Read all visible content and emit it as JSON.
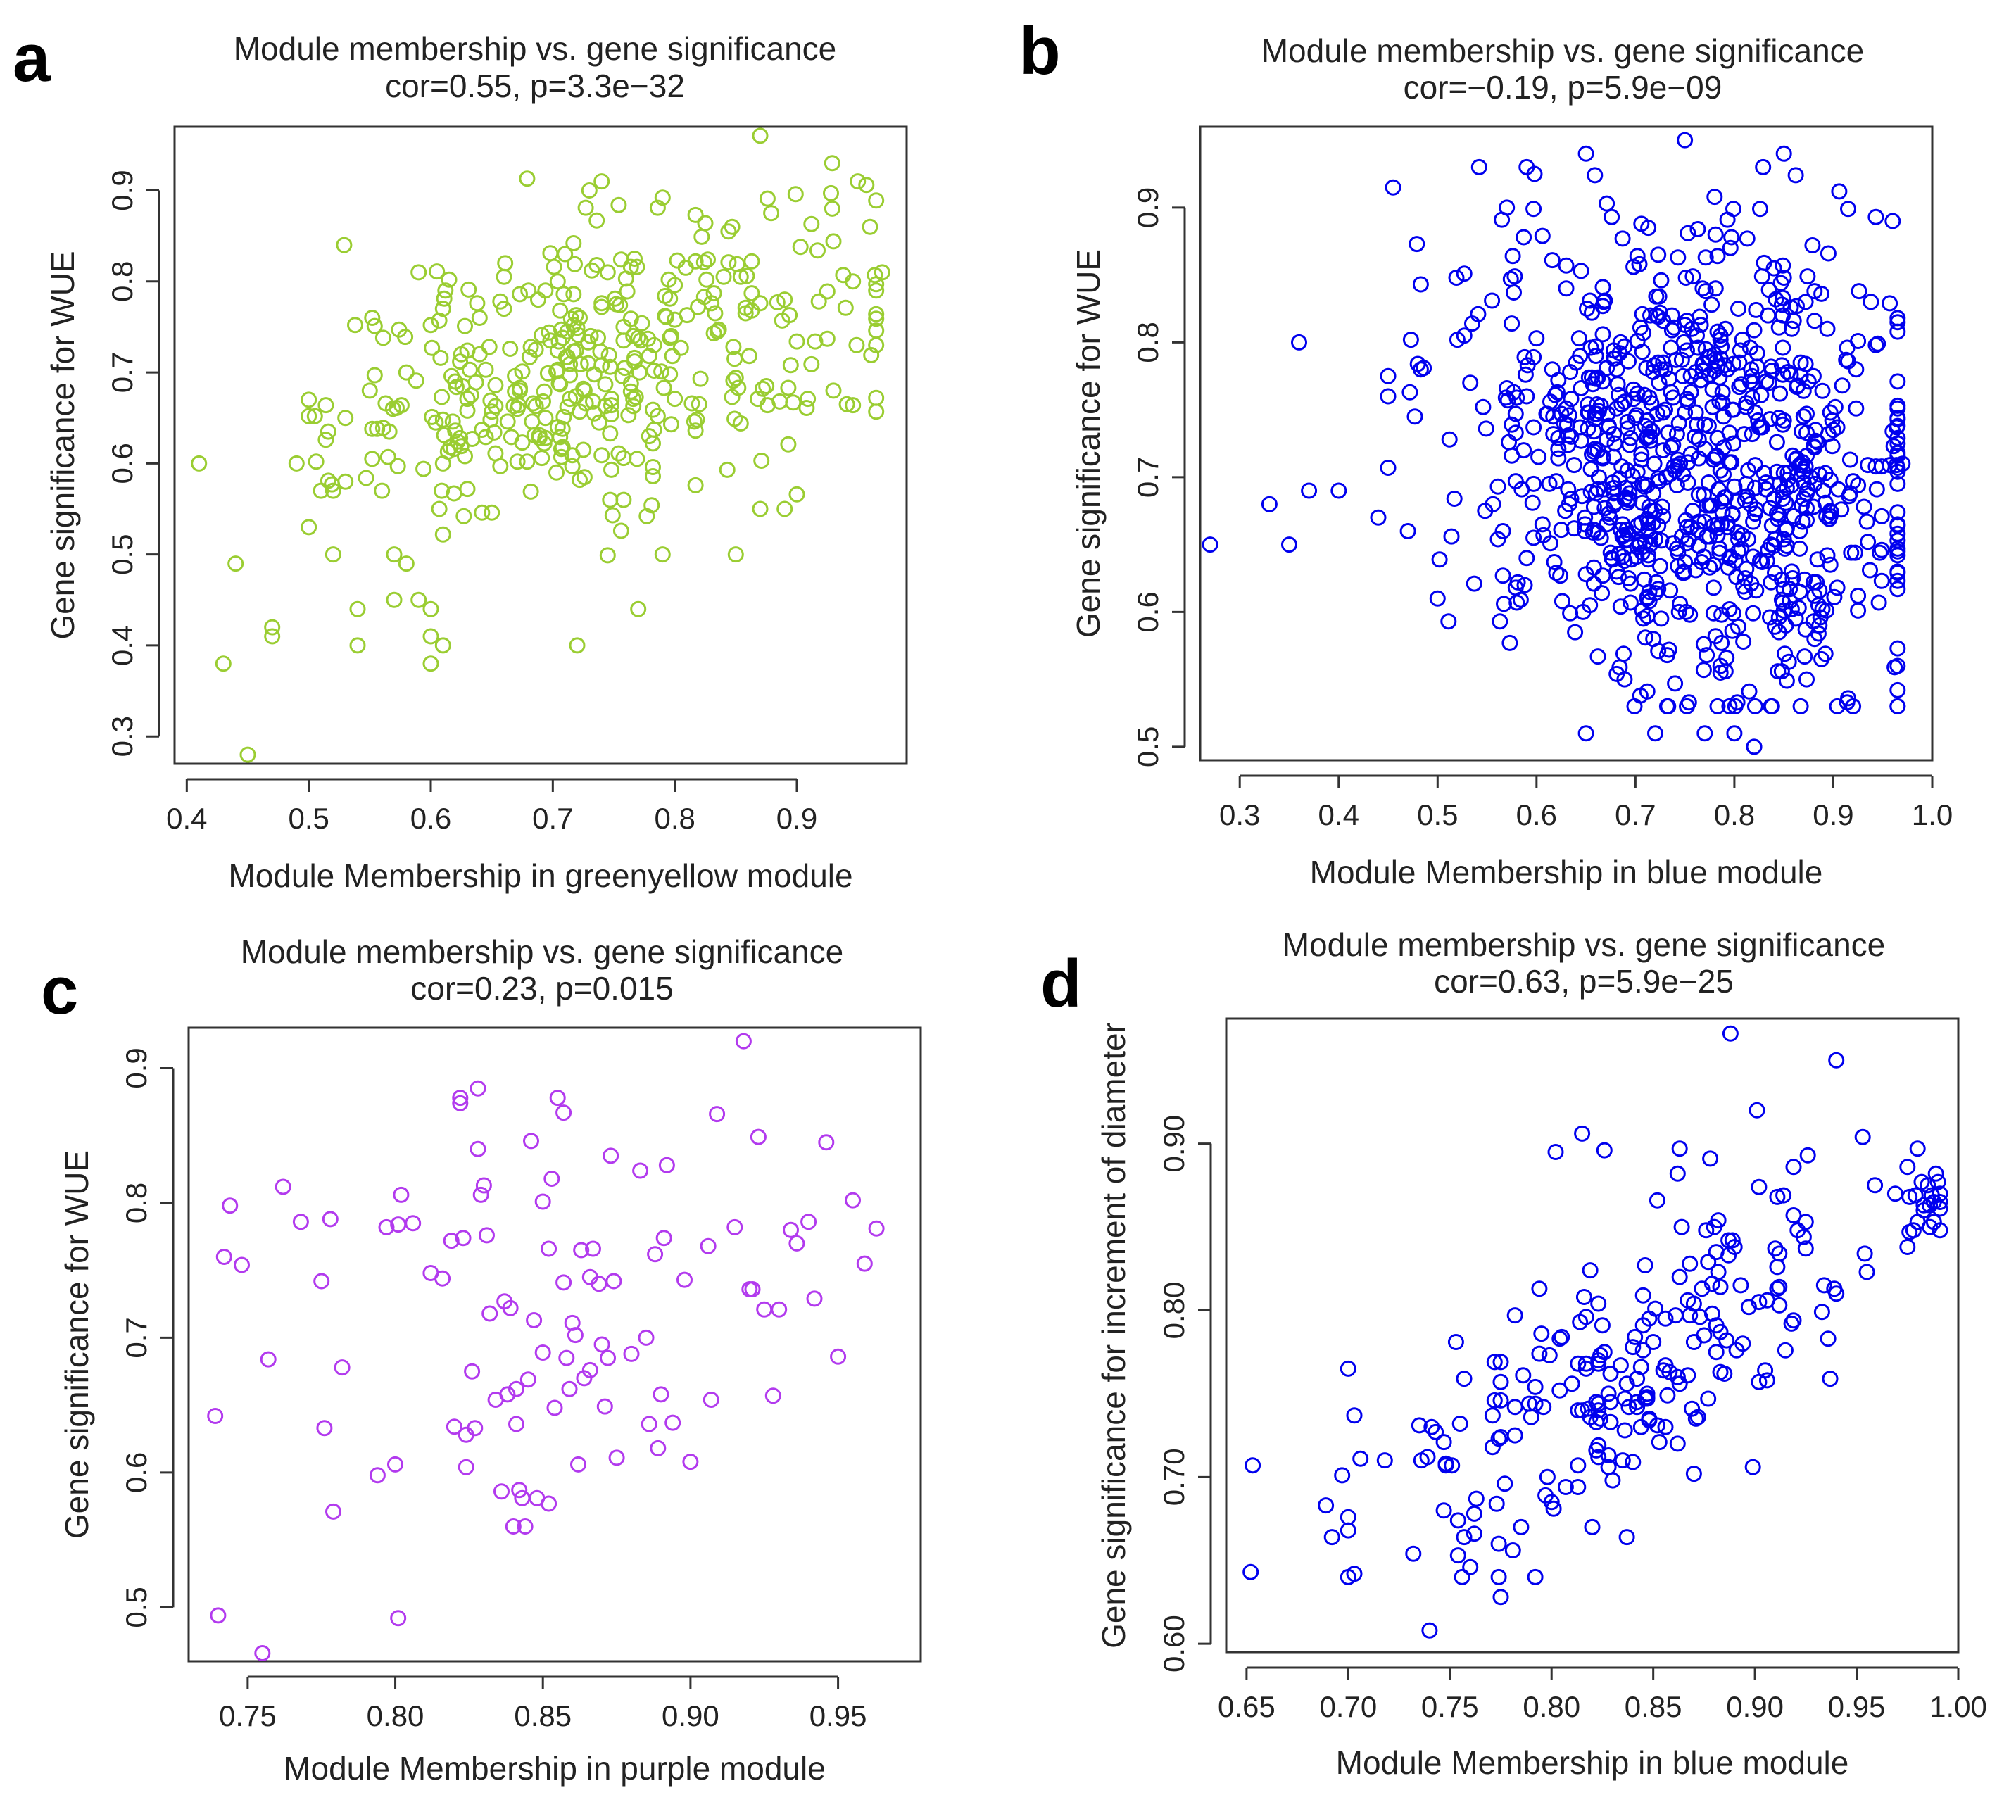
{
  "chart_data": [
    {
      "type": "scatter",
      "panel": "a",
      "title": "Module membership vs. gene significance",
      "subtitle": "cor=0.55, p=3.3e−32",
      "xlabel": "Module Membership in greenyellow module",
      "ylabel": "Gene significance for WUE",
      "xlim": [
        0.39,
        0.99
      ],
      "ylim": [
        0.27,
        0.97
      ],
      "xticks": [
        0.4,
        0.5,
        0.6,
        0.7,
        0.8,
        0.9
      ],
      "xtick_labels": [
        "0.4",
        "0.5",
        "0.6",
        "0.7",
        "0.8",
        "0.9"
      ],
      "yticks": [
        0.3,
        0.4,
        0.5,
        0.6,
        0.7,
        0.8,
        0.9
      ],
      "ytick_labels": [
        "0.3",
        "0.4",
        "0.5",
        "0.6",
        "0.7",
        "0.8",
        "0.9"
      ],
      "color": "#9ACD32",
      "n_points": 420,
      "points": [
        [
          0.41,
          0.6
        ],
        [
          0.43,
          0.38
        ],
        [
          0.44,
          0.49
        ],
        [
          0.45,
          0.28
        ],
        [
          0.47,
          0.41
        ],
        [
          0.47,
          0.42
        ],
        [
          0.49,
          0.6
        ],
        [
          0.51,
          0.57
        ],
        [
          0.52,
          0.5
        ],
        [
          0.52,
          0.57
        ],
        [
          0.53,
          0.65
        ],
        [
          0.53,
          0.58
        ],
        [
          0.54,
          0.44
        ],
        [
          0.54,
          0.4
        ],
        [
          0.55,
          0.68
        ],
        [
          0.56,
          0.57
        ],
        [
          0.57,
          0.45
        ],
        [
          0.57,
          0.5
        ],
        [
          0.58,
          0.7
        ],
        [
          0.58,
          0.49
        ],
        [
          0.59,
          0.81
        ],
        [
          0.59,
          0.45
        ],
        [
          0.6,
          0.41
        ],
        [
          0.6,
          0.44
        ],
        [
          0.6,
          0.38
        ],
        [
          0.61,
          0.4
        ],
        [
          0.61,
          0.77
        ],
        [
          0.62,
          0.69
        ],
        [
          0.64,
          0.76
        ],
        [
          0.66,
          0.77
        ],
        [
          0.71,
          0.83
        ],
        [
          0.72,
          0.4
        ],
        [
          0.73,
          0.9
        ],
        [
          0.74,
          0.91
        ],
        [
          0.77,
          0.44
        ],
        [
          0.85,
          0.5
        ],
        [
          0.87,
          0.96
        ],
        [
          0.87,
          0.55
        ],
        [
          0.89,
          0.55
        ],
        [
          0.93,
          0.68
        ],
        [
          0.95,
          0.91
        ],
        [
          0.96,
          0.86
        ],
        [
          0.97,
          0.81
        ]
      ]
    },
    {
      "type": "scatter",
      "panel": "b",
      "title": "Module membership vs. gene significance",
      "subtitle": "cor=−0.19, p=5.9e−09",
      "xlabel": "Module Membership in blue module",
      "ylabel": "Gene significance for WUE",
      "xlim": [
        0.26,
        1.0
      ],
      "ylim": [
        0.49,
        0.96
      ],
      "xticks": [
        0.3,
        0.4,
        0.5,
        0.6,
        0.7,
        0.8,
        0.9,
        1.0
      ],
      "xtick_labels": [
        "0.3",
        "0.4",
        "0.5",
        "0.6",
        "0.7",
        "0.8",
        "0.9",
        "1.0"
      ],
      "yticks": [
        0.5,
        0.6,
        0.7,
        0.8,
        0.9
      ],
      "ytick_labels": [
        "0.5",
        "0.6",
        "0.7",
        "0.8",
        "0.9"
      ],
      "color": "#0000EE",
      "n_points": 900,
      "points": [
        [
          0.27,
          0.65
        ],
        [
          0.33,
          0.68
        ],
        [
          0.35,
          0.65
        ],
        [
          0.36,
          0.8
        ],
        [
          0.37,
          0.69
        ],
        [
          0.4,
          0.69
        ],
        [
          0.44,
          0.67
        ],
        [
          0.45,
          0.76
        ],
        [
          0.47,
          0.66
        ],
        [
          0.5,
          0.61
        ],
        [
          0.57,
          0.9
        ],
        [
          0.65,
          0.51
        ],
        [
          0.65,
          0.94
        ],
        [
          0.72,
          0.51
        ],
        [
          0.75,
          0.95
        ],
        [
          0.77,
          0.51
        ],
        [
          0.8,
          0.51
        ],
        [
          0.82,
          0.5
        ],
        [
          0.82,
          0.5
        ],
        [
          0.85,
          0.94
        ],
        [
          0.96,
          0.89
        ],
        [
          0.97,
          0.71
        ]
      ]
    },
    {
      "type": "scatter",
      "panel": "c",
      "title": "Module membership vs. gene significance",
      "subtitle": "cor=0.23, p=0.015",
      "xlabel": "Module Membership in purple module",
      "ylabel": "Gene significance for WUE",
      "xlim": [
        0.73,
        0.978
      ],
      "ylim": [
        0.46,
        0.93
      ],
      "xticks": [
        0.75,
        0.8,
        0.85,
        0.9,
        0.95
      ],
      "xtick_labels": [
        "0.75",
        "0.80",
        "0.85",
        "0.90",
        "0.95"
      ],
      "yticks": [
        0.5,
        0.6,
        0.7,
        0.8,
        0.9
      ],
      "ytick_labels": [
        "0.5",
        "0.6",
        "0.7",
        "0.8",
        "0.9"
      ],
      "color": "#B23AEE",
      "points": [
        [
          0.739,
          0.642
        ],
        [
          0.74,
          0.494
        ],
        [
          0.742,
          0.76
        ],
        [
          0.744,
          0.798
        ],
        [
          0.748,
          0.754
        ],
        [
          0.755,
          0.466
        ],
        [
          0.757,
          0.684
        ],
        [
          0.762,
          0.812
        ],
        [
          0.768,
          0.786
        ],
        [
          0.775,
          0.742
        ],
        [
          0.776,
          0.633
        ],
        [
          0.778,
          0.788
        ],
        [
          0.779,
          0.571
        ],
        [
          0.782,
          0.678
        ],
        [
          0.794,
          0.598
        ],
        [
          0.797,
          0.782
        ],
        [
          0.8,
          0.606
        ],
        [
          0.801,
          0.492
        ],
        [
          0.801,
          0.784
        ],
        [
          0.802,
          0.806
        ],
        [
          0.806,
          0.785
        ],
        [
          0.812,
          0.748
        ],
        [
          0.816,
          0.744
        ],
        [
          0.819,
          0.772
        ],
        [
          0.82,
          0.634
        ],
        [
          0.822,
          0.874
        ],
        [
          0.822,
          0.878
        ],
        [
          0.823,
          0.774
        ],
        [
          0.824,
          0.628
        ],
        [
          0.824,
          0.604
        ],
        [
          0.826,
          0.675
        ],
        [
          0.827,
          0.633
        ],
        [
          0.828,
          0.885
        ],
        [
          0.828,
          0.84
        ],
        [
          0.829,
          0.806
        ],
        [
          0.83,
          0.813
        ],
        [
          0.831,
          0.776
        ],
        [
          0.832,
          0.718
        ],
        [
          0.834,
          0.654
        ],
        [
          0.836,
          0.586
        ],
        [
          0.837,
          0.727
        ],
        [
          0.838,
          0.658
        ],
        [
          0.839,
          0.722
        ],
        [
          0.84,
          0.56
        ],
        [
          0.841,
          0.662
        ],
        [
          0.841,
          0.636
        ],
        [
          0.842,
          0.587
        ],
        [
          0.843,
          0.581
        ],
        [
          0.844,
          0.56
        ],
        [
          0.845,
          0.669
        ],
        [
          0.846,
          0.846
        ],
        [
          0.847,
          0.713
        ],
        [
          0.848,
          0.581
        ],
        [
          0.85,
          0.801
        ],
        [
          0.85,
          0.689
        ],
        [
          0.852,
          0.577
        ],
        [
          0.852,
          0.766
        ],
        [
          0.853,
          0.818
        ],
        [
          0.854,
          0.648
        ],
        [
          0.855,
          0.878
        ],
        [
          0.857,
          0.741
        ],
        [
          0.857,
          0.867
        ],
        [
          0.858,
          0.685
        ],
        [
          0.859,
          0.662
        ],
        [
          0.86,
          0.711
        ],
        [
          0.861,
          0.702
        ],
        [
          0.862,
          0.606
        ],
        [
          0.863,
          0.765
        ],
        [
          0.864,
          0.67
        ],
        [
          0.866,
          0.745
        ],
        [
          0.866,
          0.676
        ],
        [
          0.867,
          0.766
        ],
        [
          0.869,
          0.74
        ],
        [
          0.87,
          0.695
        ],
        [
          0.871,
          0.649
        ],
        [
          0.872,
          0.685
        ],
        [
          0.873,
          0.835
        ],
        [
          0.874,
          0.742
        ],
        [
          0.875,
          0.611
        ],
        [
          0.88,
          0.688
        ],
        [
          0.883,
          0.824
        ],
        [
          0.885,
          0.7
        ],
        [
          0.886,
          0.636
        ],
        [
          0.888,
          0.762
        ],
        [
          0.889,
          0.618
        ],
        [
          0.89,
          0.658
        ],
        [
          0.891,
          0.774
        ],
        [
          0.892,
          0.828
        ],
        [
          0.894,
          0.637
        ],
        [
          0.898,
          0.743
        ],
        [
          0.9,
          0.608
        ],
        [
          0.906,
          0.768
        ],
        [
          0.907,
          0.654
        ],
        [
          0.909,
          0.866
        ],
        [
          0.915,
          0.782
        ],
        [
          0.918,
          0.92
        ],
        [
          0.92,
          0.736
        ],
        [
          0.921,
          0.736
        ],
        [
          0.923,
          0.849
        ],
        [
          0.925,
          0.721
        ],
        [
          0.928,
          0.657
        ],
        [
          0.93,
          0.721
        ],
        [
          0.934,
          0.78
        ],
        [
          0.936,
          0.77
        ],
        [
          0.94,
          0.786
        ],
        [
          0.942,
          0.729
        ],
        [
          0.946,
          0.845
        ],
        [
          0.95,
          0.686
        ],
        [
          0.955,
          0.802
        ],
        [
          0.959,
          0.755
        ],
        [
          0.963,
          0.781
        ]
      ]
    },
    {
      "type": "scatter",
      "panel": "d",
      "title": "Module membership vs. gene significance",
      "subtitle": "cor=0.63, p=5.9e−25",
      "xlabel": "Module Membership in blue module",
      "ylabel": "Gene significance for increment of diameter",
      "xlim": [
        0.64,
        1.0
      ],
      "ylim": [
        0.595,
        0.975
      ],
      "xticks": [
        0.65,
        0.7,
        0.75,
        0.8,
        0.85,
        0.9,
        0.95,
        1.0
      ],
      "xtick_labels": [
        "0.65",
        "0.70",
        "0.75",
        "0.80",
        "0.85",
        "0.90",
        "0.95",
        "1.00"
      ],
      "yticks": [
        0.6,
        0.7,
        0.8,
        0.9
      ],
      "ytick_labels": [
        "0.60",
        "0.70",
        "0.80",
        "0.90"
      ],
      "color": "#0000EE",
      "n_points": 260,
      "points": [
        [
          0.652,
          0.643
        ],
        [
          0.653,
          0.707
        ],
        [
          0.689,
          0.683
        ],
        [
          0.692,
          0.664
        ],
        [
          0.697,
          0.701
        ],
        [
          0.703,
          0.737
        ],
        [
          0.706,
          0.711
        ],
        [
          0.732,
          0.654
        ],
        [
          0.74,
          0.608
        ],
        [
          0.747,
          0.721
        ],
        [
          0.775,
          0.628
        ],
        [
          0.802,
          0.895
        ],
        [
          0.815,
          0.906
        ],
        [
          0.87,
          0.702
        ],
        [
          0.878,
          0.891
        ],
        [
          0.888,
          0.966
        ],
        [
          0.899,
          0.706
        ],
        [
          0.901,
          0.92
        ],
        [
          0.94,
          0.95
        ],
        [
          0.98,
          0.897
        ],
        [
          0.99,
          0.877
        ],
        [
          0.991,
          0.87
        ]
      ]
    }
  ]
}
